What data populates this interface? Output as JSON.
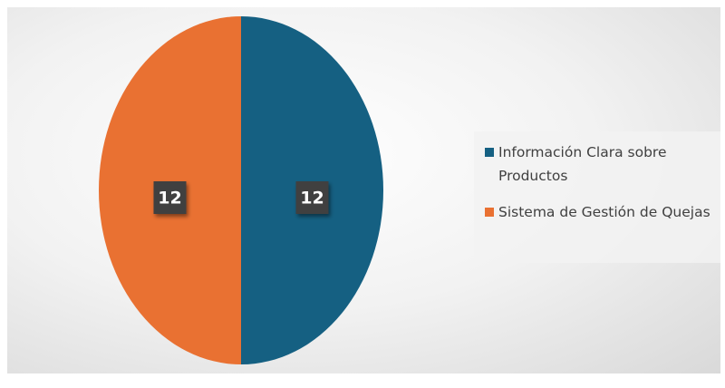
{
  "chart_data": {
    "type": "pie",
    "categories": [
      "Información Clara sobre Productos",
      "Sistema de Gestión de Quejas"
    ],
    "values": [
      12,
      12
    ],
    "colors": [
      "#156082",
      "#e97132"
    ],
    "legend": "right"
  }
}
